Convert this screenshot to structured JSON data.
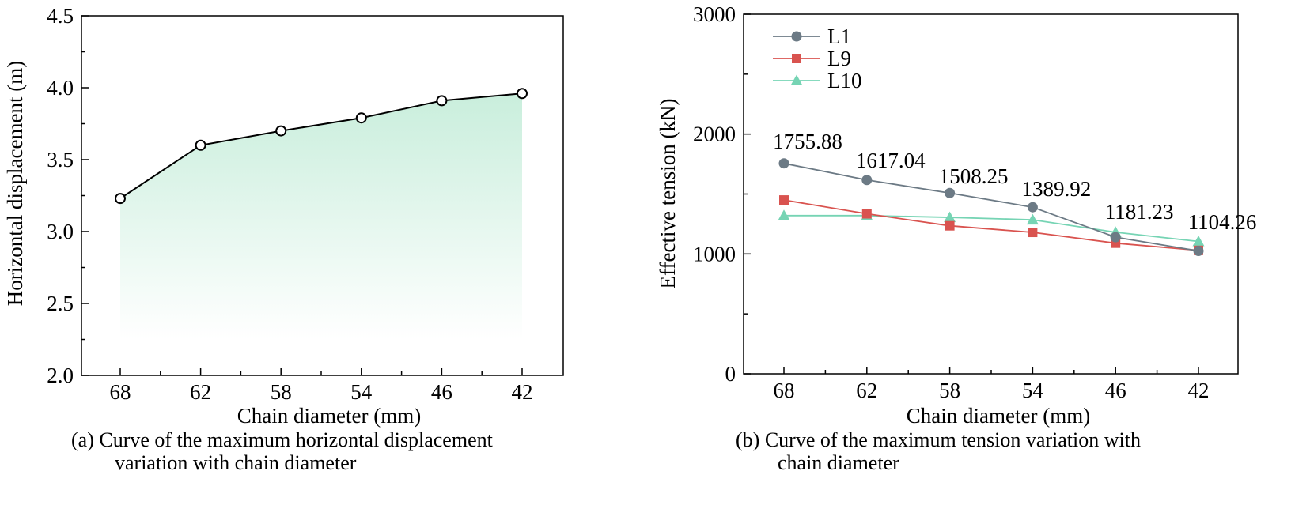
{
  "chart_data": [
    {
      "type": "area",
      "panel": "a",
      "caption_line1": "(a) Curve of the maximum horizontal displacement",
      "caption_line2": "variation with chain diameter",
      "xlabel": "Chain diameter (mm)",
      "ylabel": "Horizontal displacement (m)",
      "categories": [
        "68",
        "62",
        "58",
        "54",
        "46",
        "42"
      ],
      "values": [
        3.23,
        3.6,
        3.7,
        3.79,
        3.91,
        3.96
      ],
      "ylim": [
        2.0,
        4.5
      ],
      "yticks": [
        "2.0",
        "2.5",
        "3.0",
        "3.5",
        "4.0",
        "4.5"
      ],
      "grid": false,
      "colors": {
        "line": "#000000",
        "fill": "#c9eedc",
        "marker_fill": "#ffffff"
      }
    },
    {
      "type": "line",
      "panel": "b",
      "caption_line1": "(b) Curve of the maximum tension variation with",
      "caption_line2": "chain diameter",
      "xlabel": "Chain diameter (mm)",
      "ylabel": "Effective tension (kN)",
      "categories": [
        "68",
        "62",
        "58",
        "54",
        "46",
        "42"
      ],
      "ylim": [
        0,
        3000
      ],
      "yticks": [
        "0",
        "1000",
        "2000",
        "3000"
      ],
      "grid": false,
      "legend_position": "top-left",
      "series": [
        {
          "name": "L1",
          "marker": "circle",
          "color": "#6c7a85",
          "values": [
            1755.88,
            1617.04,
            1508.25,
            1389.92,
            1140,
            1025
          ]
        },
        {
          "name": "L9",
          "marker": "square",
          "color": "#d9534f",
          "values": [
            1450,
            1335,
            1235,
            1180,
            1090,
            1030
          ]
        },
        {
          "name": "L10",
          "marker": "triangle",
          "color": "#76d4b4",
          "values": [
            1320,
            1320,
            1305,
            1285,
            1181.23,
            1104.26
          ]
        }
      ],
      "data_labels": [
        "1755.88",
        "1617.04",
        "1508.25",
        "1389.92",
        "1181.23",
        "1104.26"
      ]
    }
  ]
}
